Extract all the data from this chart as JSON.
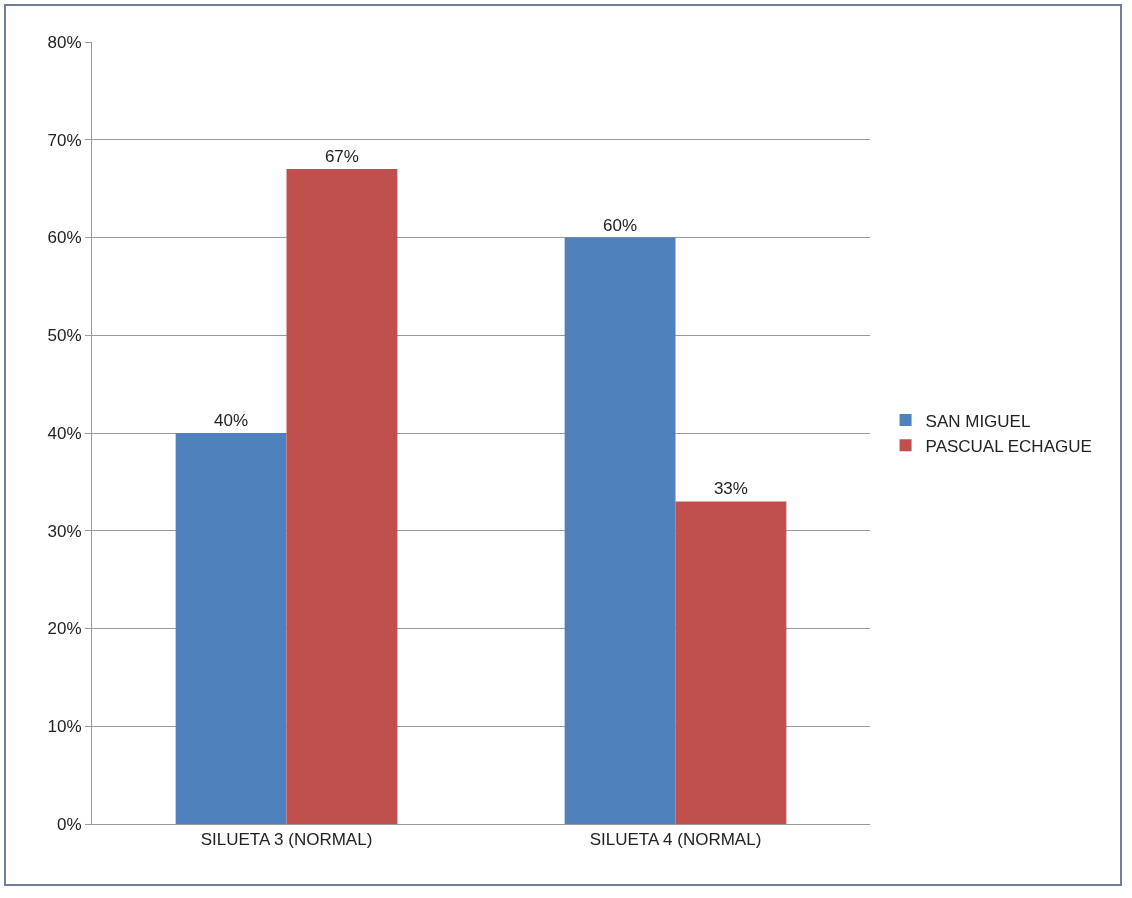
{
  "chart_data": {
    "type": "bar",
    "categories": [
      "SILUETA 3 (NORMAL)",
      "SILUETA 4 (NORMAL)"
    ],
    "series": [
      {
        "name": "SAN MIGUEL",
        "color": "#4f81bd",
        "values": [
          40,
          60
        ],
        "value_labels": [
          "40%",
          "60%"
        ]
      },
      {
        "name": "PASCUAL ECHAGUE",
        "color": "#c0504d",
        "values": [
          67,
          33
        ],
        "value_labels": [
          "67%",
          "33%"
        ]
      }
    ],
    "ylim": [
      0,
      80
    ],
    "yticks": [
      {
        "value": 0,
        "label": "0%"
      },
      {
        "value": 10,
        "label": "10%"
      },
      {
        "value": 20,
        "label": "20%"
      },
      {
        "value": 30,
        "label": "30%"
      },
      {
        "value": 40,
        "label": "40%"
      },
      {
        "value": 50,
        "label": "50%"
      },
      {
        "value": 60,
        "label": "60%"
      },
      {
        "value": 70,
        "label": "70%"
      },
      {
        "value": 80,
        "label": "80%"
      }
    ],
    "grid": "y",
    "legend": "right"
  }
}
